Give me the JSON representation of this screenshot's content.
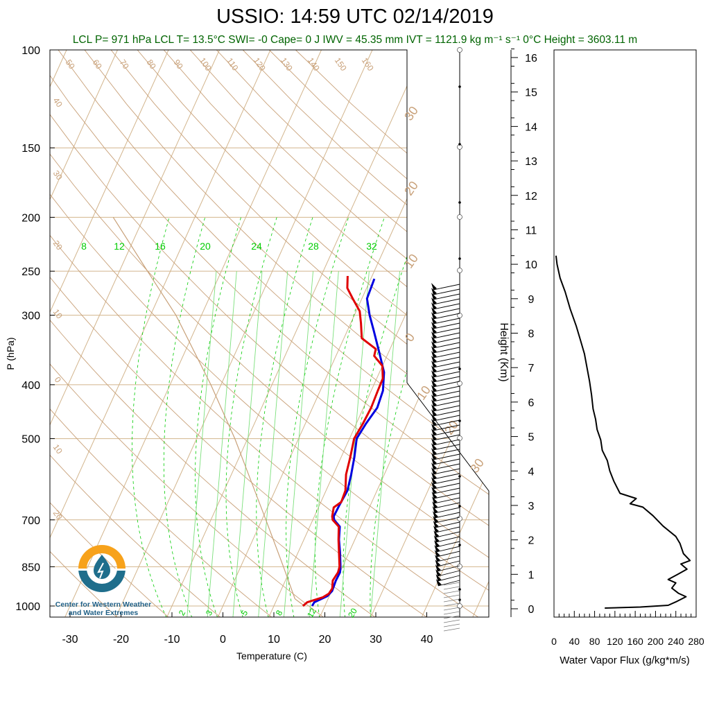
{
  "header": {
    "title": "USSIO: 14:59 UTC 02/14/2019",
    "subtitle": "LCL P= 971 hPa  LCL T= 13.5°C  SWI= -0  Cape= 0 J  IWV = 45.35 mm  IVT = 1121.9 kg m⁻¹ s⁻¹  0°C Height = 3603.11 m"
  },
  "logo": {
    "line1": "Center for Western Weather",
    "line2": "and Water Extremes",
    "colors": {
      "sun": "#f7a21b",
      "water": "#1f6e8c"
    }
  },
  "colors": {
    "temperature": "#e00000",
    "dewpoint": "#0000e0",
    "isotherm": "#d2b48c",
    "mixing_ratio": "#00cc00",
    "adiabat": "#c8a078",
    "subtitle": "#006400",
    "flux": "#000000"
  },
  "chart_data": [
    {
      "type": "line",
      "name": "skew-t",
      "xlabel": "Temperature (C)",
      "ylabel": "P (hPa)",
      "x_ticks": [
        -30,
        -20,
        -10,
        0,
        10,
        20,
        30,
        40
      ],
      "y_ticks": [
        100,
        150,
        200,
        250,
        300,
        400,
        500,
        700,
        850,
        1000
      ],
      "y_scale": "log",
      "y_reversed": true,
      "xlim": [
        -34,
        41
      ],
      "ylim": [
        1050,
        100
      ],
      "mixing_ratio_labels": [
        "8",
        "12",
        "16",
        "20",
        "24",
        "28",
        "32"
      ],
      "mixing_ratio_bottom_labels": [
        "2",
        "3",
        "5",
        "8",
        "12",
        "20"
      ],
      "isotherm_labels": [
        "50",
        "60",
        "70",
        "80",
        "90",
        "100",
        "110",
        "120",
        "130",
        "140",
        "150",
        "160"
      ],
      "dry_adiabat_labels": [
        "40",
        "30",
        "20",
        "10",
        "0",
        "10",
        "20"
      ],
      "moist_adiabat_labels": [
        "30",
        "20",
        "10",
        "0",
        "10",
        "20",
        "30"
      ],
      "series": [
        {
          "name": "Temperature",
          "points": [
            {
              "p": 1000,
              "t": 15.7
            },
            {
              "p": 985,
              "t": 16.2
            },
            {
              "p": 965,
              "t": 18.8
            },
            {
              "p": 950,
              "t": 19.7
            },
            {
              "p": 930,
              "t": 19.9
            },
            {
              "p": 900,
              "t": 19.3
            },
            {
              "p": 870,
              "t": 19.6
            },
            {
              "p": 850,
              "t": 19.4
            },
            {
              "p": 800,
              "t": 18.0
            },
            {
              "p": 760,
              "t": 16.8
            },
            {
              "p": 720,
              "t": 15.7
            },
            {
              "p": 700,
              "t": 13.9
            },
            {
              "p": 690,
              "t": 13.5
            },
            {
              "p": 665,
              "t": 13.0
            },
            {
              "p": 650,
              "t": 14.0
            },
            {
              "p": 620,
              "t": 13.8
            },
            {
              "p": 580,
              "t": 12.5
            },
            {
              "p": 540,
              "t": 11.8
            },
            {
              "p": 500,
              "t": 10.9
            },
            {
              "p": 470,
              "t": 11.3
            },
            {
              "p": 440,
              "t": 11.5
            },
            {
              "p": 410,
              "t": 11.3
            },
            {
              "p": 390,
              "t": 11.2
            },
            {
              "p": 370,
              "t": 10.0
            },
            {
              "p": 355,
              "t": 7.5
            },
            {
              "p": 345,
              "t": 7.2
            },
            {
              "p": 330,
              "t": 3.5
            },
            {
              "p": 310,
              "t": 2.0
            },
            {
              "p": 295,
              "t": 0.7
            },
            {
              "p": 280,
              "t": -1.8
            },
            {
              "p": 268,
              "t": -3.8
            },
            {
              "p": 255,
              "t": -4.8
            }
          ]
        },
        {
          "name": "Dewpoint",
          "points": [
            {
              "p": 1000,
              "t": 17.5
            },
            {
              "p": 985,
              "t": 17.6
            },
            {
              "p": 960,
              "t": 19.6
            },
            {
              "p": 940,
              "t": 20.1
            },
            {
              "p": 900,
              "t": 19.9
            },
            {
              "p": 870,
              "t": 20.0
            },
            {
              "p": 850,
              "t": 19.6
            },
            {
              "p": 800,
              "t": 18.2
            },
            {
              "p": 760,
              "t": 16.9
            },
            {
              "p": 720,
              "t": 15.9
            },
            {
              "p": 700,
              "t": 14.2
            },
            {
              "p": 690,
              "t": 13.8
            },
            {
              "p": 660,
              "t": 13.9
            },
            {
              "p": 620,
              "t": 14.2
            },
            {
              "p": 580,
              "t": 13.5
            },
            {
              "p": 540,
              "t": 12.6
            },
            {
              "p": 500,
              "t": 11.4
            },
            {
              "p": 470,
              "t": 11.9
            },
            {
              "p": 440,
              "t": 12.7
            },
            {
              "p": 410,
              "t": 12.3
            },
            {
              "p": 380,
              "t": 10.9
            },
            {
              "p": 350,
              "t": 8.2
            },
            {
              "p": 320,
              "t": 5.2
            },
            {
              "p": 300,
              "t": 3.0
            },
            {
              "p": 280,
              "t": 1.0
            },
            {
              "p": 258,
              "t": 0.7
            }
          ]
        },
        {
          "name": "Parcel",
          "points": [
            {
              "p": 1000,
              "t": 16.0
            },
            {
              "p": 971,
              "t": 13.5
            },
            {
              "p": 850,
              "t": 8.4
            },
            {
              "p": 700,
              "t": 0.8
            },
            {
              "p": 500,
              "t": -12.5
            },
            {
              "p": 400,
              "t": -22.0
            },
            {
              "p": 300,
              "t": -35.0
            },
            {
              "p": 250,
              "t": -44.5
            },
            {
              "p": 200,
              "t": -56.0
            }
          ]
        }
      ]
    },
    {
      "type": "line",
      "name": "wind-profile",
      "ylabel": "Height (Km)",
      "y_ticks": [
        0,
        1,
        2,
        3,
        4,
        5,
        6,
        7,
        8,
        9,
        10,
        11,
        12,
        13,
        14,
        15,
        16
      ],
      "ylim": [
        0,
        16.5
      ]
    },
    {
      "type": "line",
      "name": "water-vapor-flux",
      "xlabel": "Water Vapor Flux (g/kg*m/s)",
      "x_ticks": [
        0,
        40,
        80,
        120,
        160,
        200,
        240,
        280
      ],
      "xlim": [
        0,
        280
      ],
      "ylim": [
        0,
        16.5
      ],
      "series": [
        {
          "name": "Flux",
          "points": [
            {
              "h": 0.02,
              "v": 100
            },
            {
              "h": 0.05,
              "v": 170
            },
            {
              "h": 0.1,
              "v": 225
            },
            {
              "h": 0.2,
              "v": 240
            },
            {
              "h": 0.35,
              "v": 260
            },
            {
              "h": 0.45,
              "v": 245
            },
            {
              "h": 0.6,
              "v": 232
            },
            {
              "h": 0.75,
              "v": 240
            },
            {
              "h": 0.85,
              "v": 225
            },
            {
              "h": 1.0,
              "v": 244
            },
            {
              "h": 1.15,
              "v": 262
            },
            {
              "h": 1.3,
              "v": 250
            },
            {
              "h": 1.4,
              "v": 268
            },
            {
              "h": 1.6,
              "v": 255
            },
            {
              "h": 1.9,
              "v": 248
            },
            {
              "h": 2.1,
              "v": 240
            },
            {
              "h": 2.4,
              "v": 215
            },
            {
              "h": 2.7,
              "v": 195
            },
            {
              "h": 2.95,
              "v": 175
            },
            {
              "h": 3.05,
              "v": 150
            },
            {
              "h": 3.2,
              "v": 162
            },
            {
              "h": 3.35,
              "v": 130
            },
            {
              "h": 3.7,
              "v": 118
            },
            {
              "h": 4.0,
              "v": 110
            },
            {
              "h": 4.3,
              "v": 105
            },
            {
              "h": 4.6,
              "v": 95
            },
            {
              "h": 4.9,
              "v": 92
            },
            {
              "h": 5.2,
              "v": 85
            },
            {
              "h": 5.5,
              "v": 82
            },
            {
              "h": 5.8,
              "v": 77
            },
            {
              "h": 6.2,
              "v": 74
            },
            {
              "h": 6.6,
              "v": 70
            },
            {
              "h": 7.0,
              "v": 65
            },
            {
              "h": 7.4,
              "v": 60
            },
            {
              "h": 7.8,
              "v": 52
            },
            {
              "h": 8.2,
              "v": 44
            },
            {
              "h": 8.7,
              "v": 32
            },
            {
              "h": 9.2,
              "v": 22
            },
            {
              "h": 9.6,
              "v": 12
            },
            {
              "h": 10.0,
              "v": 6
            },
            {
              "h": 10.25,
              "v": 4
            }
          ]
        }
      ]
    }
  ]
}
